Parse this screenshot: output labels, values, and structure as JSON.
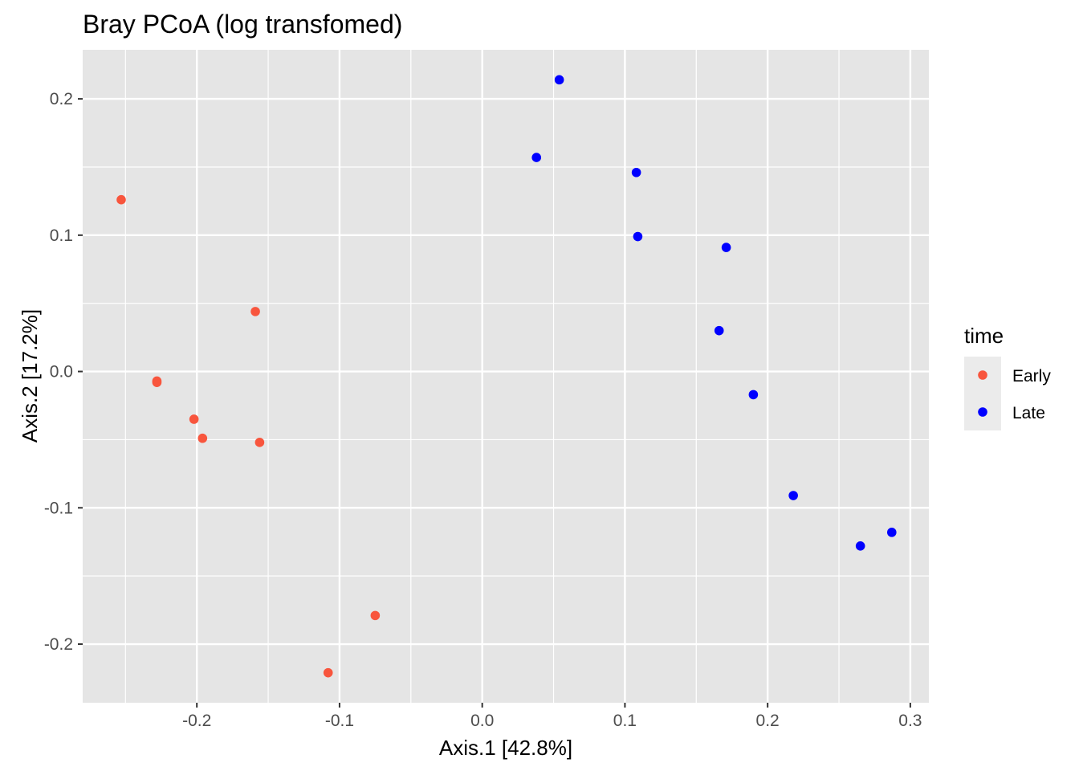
{
  "chart_data": {
    "type": "scatter",
    "title": "Bray PCoA (log transfomed)",
    "xlabel": "Axis.1   [42.8%]",
    "ylabel": "Axis.2   [17.2%]",
    "xlim": [
      -0.28,
      0.313
    ],
    "ylim": [
      -0.243,
      0.236
    ],
    "x_ticks": [
      -0.2,
      -0.1,
      0.0,
      0.1,
      0.2,
      0.3
    ],
    "x_tick_labels": [
      "-0.2",
      "-0.1",
      "0.0",
      "0.1",
      "0.2",
      "0.3"
    ],
    "y_ticks": [
      -0.2,
      -0.1,
      0.0,
      0.1,
      0.2
    ],
    "y_tick_labels": [
      "-0.2",
      "-0.1",
      "0.0",
      "0.1",
      "0.2"
    ],
    "grid": true,
    "legend": {
      "title": "time",
      "position": "right",
      "entries": [
        {
          "label": "Early",
          "color": "#F8553D"
        },
        {
          "label": "Late",
          "color": "#0000FF"
        }
      ]
    },
    "series": [
      {
        "name": "Early",
        "color": "#F8553D",
        "points": [
          {
            "x": -0.253,
            "y": 0.126
          },
          {
            "x": -0.159,
            "y": 0.044
          },
          {
            "x": -0.228,
            "y": -0.007
          },
          {
            "x": -0.228,
            "y": -0.008
          },
          {
            "x": -0.202,
            "y": -0.035
          },
          {
            "x": -0.196,
            "y": -0.049
          },
          {
            "x": -0.156,
            "y": -0.052
          },
          {
            "x": -0.075,
            "y": -0.179
          },
          {
            "x": -0.108,
            "y": -0.221
          }
        ]
      },
      {
        "name": "Late",
        "color": "#0000FF",
        "points": [
          {
            "x": 0.054,
            "y": 0.214
          },
          {
            "x": 0.038,
            "y": 0.157
          },
          {
            "x": 0.108,
            "y": 0.146
          },
          {
            "x": 0.109,
            "y": 0.099
          },
          {
            "x": 0.171,
            "y": 0.091
          },
          {
            "x": 0.166,
            "y": 0.03
          },
          {
            "x": 0.19,
            "y": -0.017
          },
          {
            "x": 0.218,
            "y": -0.091
          },
          {
            "x": 0.287,
            "y": -0.118
          },
          {
            "x": 0.265,
            "y": -0.128
          }
        ]
      }
    ]
  },
  "colors": {
    "panel_background": "#E5E5E5",
    "grid_major": "#FFFFFF",
    "tick_label": "#4D4D4D",
    "legend_key_background": "#EBEBEB"
  }
}
